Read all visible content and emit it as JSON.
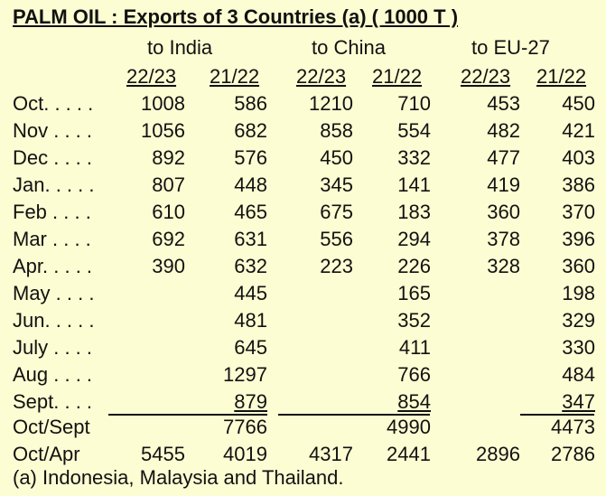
{
  "title": "PALM OIL : Exports of 3 Countries (a)  ( 1000 T )",
  "groups": [
    "to India",
    "to China",
    "to EU-27"
  ],
  "years": [
    "22/23",
    "21/22",
    "22/23",
    "21/22",
    "22/23",
    "21/22"
  ],
  "rows": [
    {
      "label": "Oct. . . . .",
      "v": [
        "1008",
        "586",
        "1210",
        "710",
        "453",
        "450"
      ]
    },
    {
      "label": "Nov . . . .",
      "v": [
        "1056",
        "682",
        "858",
        "554",
        "482",
        "421"
      ]
    },
    {
      "label": "Dec . . . .",
      "v": [
        "892",
        "576",
        "450",
        "332",
        "477",
        "403"
      ]
    },
    {
      "label": "Jan. . . . .",
      "v": [
        "807",
        "448",
        "345",
        "141",
        "419",
        "386"
      ]
    },
    {
      "label": "Feb . . . .",
      "v": [
        "610",
        "465",
        "675",
        "183",
        "360",
        "370"
      ]
    },
    {
      "label": "Mar . . . .",
      "v": [
        "692",
        "631",
        "556",
        "294",
        "378",
        "396"
      ]
    },
    {
      "label": "Apr. . . . .",
      "v": [
        "390",
        "632",
        "223",
        "226",
        "328",
        "360"
      ]
    },
    {
      "label": "May . . . .",
      "v": [
        "",
        "445",
        "",
        "165",
        "",
        "198"
      ]
    },
    {
      "label": "Jun. . . . .",
      "v": [
        "",
        "481",
        "",
        "352",
        "",
        "329"
      ]
    },
    {
      "label": "July . . . .",
      "v": [
        "",
        "645",
        "",
        "411",
        "",
        "330"
      ]
    },
    {
      "label": "Aug . . . .",
      "v": [
        "",
        "1297",
        "",
        "766",
        "",
        "484"
      ]
    },
    {
      "label": "Sept. . . .",
      "v": [
        "",
        "879",
        "",
        "854",
        "",
        "347"
      ]
    },
    {
      "label": "Oct/Sept",
      "v": [
        "",
        "7766",
        "",
        "4990",
        "",
        "4473"
      ]
    },
    {
      "label": "Oct/Apr",
      "v": [
        "5455",
        "4019",
        "4317",
        "2441",
        "2896",
        "2786"
      ]
    }
  ],
  "footnote": "(a) Indonesia, Malaysia and Thailand."
}
